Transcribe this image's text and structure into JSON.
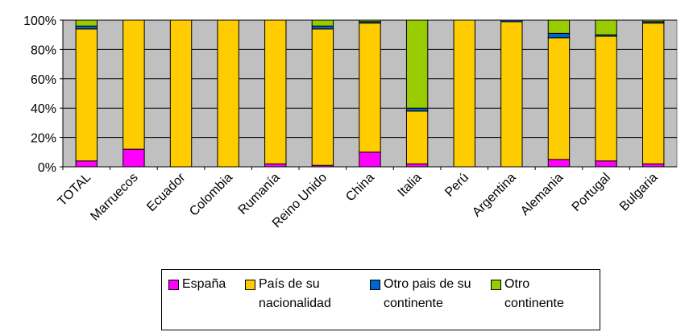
{
  "chart_data": {
    "type": "stacked_bar_percent",
    "categories": [
      "TOTAL",
      "Marruecos",
      "Ecuador",
      "Colombia",
      "Rumanía",
      "Reino Unido",
      "China",
      "Italia",
      "Perú",
      "Argentina",
      "Alemania",
      "Portugal",
      "Bulgaria"
    ],
    "series": [
      {
        "name": "España",
        "color": "#ff00ff",
        "values": [
          4,
          12,
          0,
          0,
          2,
          1,
          10,
          2,
          0,
          0,
          5,
          4,
          2
        ]
      },
      {
        "name": "País de su nacionalidad",
        "color": "#ffcc00",
        "values": [
          90,
          88,
          100,
          100,
          98,
          93,
          88,
          36,
          100,
          99,
          83,
          85,
          96
        ]
      },
      {
        "name": "Otro pais de su continente",
        "color": "#0066cc",
        "values": [
          2,
          0,
          0,
          0,
          0,
          2,
          1,
          2,
          0,
          1,
          3,
          1,
          1
        ]
      },
      {
        "name": "Otro continente",
        "color": "#99cc00",
        "values": [
          4,
          0,
          0,
          0,
          0,
          4,
          1,
          60,
          0,
          0,
          9,
          10,
          1
        ]
      }
    ],
    "ylim": [
      0,
      100
    ],
    "yticks": [
      {
        "value": 0,
        "label": "0%"
      },
      {
        "value": 20,
        "label": "20%"
      },
      {
        "value": 40,
        "label": "40%"
      },
      {
        "value": 60,
        "label": "60%"
      },
      {
        "value": 80,
        "label": "80%"
      },
      {
        "value": 100,
        "label": "100%"
      }
    ],
    "grid": true
  }
}
